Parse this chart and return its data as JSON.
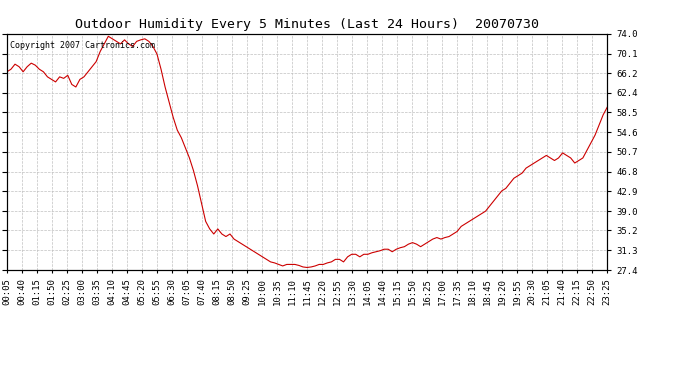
{
  "title": "Outdoor Humidity Every 5 Minutes (Last 24 Hours)  20070730",
  "copyright": "Copyright 2007 Cartronics.com",
  "background_color": "#ffffff",
  "line_color": "#cc0000",
  "grid_color": "#c0c0c0",
  "yticks": [
    27.4,
    31.3,
    35.2,
    39.0,
    42.9,
    46.8,
    50.7,
    54.6,
    58.5,
    62.4,
    66.2,
    70.1,
    74.0
  ],
  "ylim": [
    27.4,
    74.0
  ],
  "xtick_labels": [
    "00:05",
    "00:40",
    "01:15",
    "01:50",
    "02:25",
    "03:00",
    "03:35",
    "04:10",
    "04:45",
    "05:20",
    "05:55",
    "06:30",
    "07:05",
    "07:40",
    "08:15",
    "08:50",
    "09:25",
    "10:00",
    "10:35",
    "11:10",
    "11:45",
    "12:20",
    "12:55",
    "13:30",
    "14:05",
    "14:40",
    "15:15",
    "15:50",
    "16:25",
    "17:00",
    "17:35",
    "18:10",
    "18:45",
    "19:20",
    "19:55",
    "20:30",
    "21:05",
    "21:40",
    "22:15",
    "22:50",
    "23:25"
  ],
  "humidity_values": [
    66.5,
    67.0,
    68.0,
    67.5,
    66.5,
    67.5,
    68.2,
    67.8,
    67.0,
    66.5,
    65.5,
    65.0,
    64.5,
    65.5,
    65.2,
    65.8,
    64.0,
    63.5,
    65.0,
    65.5,
    66.5,
    67.5,
    68.5,
    70.5,
    72.0,
    73.5,
    73.0,
    72.5,
    72.0,
    72.8,
    72.0,
    71.5,
    72.5,
    72.8,
    73.0,
    72.5,
    71.5,
    70.0,
    67.0,
    63.5,
    60.5,
    57.5,
    55.0,
    53.5,
    51.5,
    49.5,
    47.0,
    44.0,
    40.5,
    37.0,
    35.5,
    34.5,
    35.5,
    34.5,
    34.0,
    34.5,
    33.5,
    33.0,
    32.5,
    32.0,
    31.5,
    31.0,
    30.5,
    30.0,
    29.5,
    29.0,
    28.8,
    28.5,
    28.2,
    28.5,
    28.5,
    28.5,
    28.3,
    28.0,
    27.9,
    28.0,
    28.2,
    28.5,
    28.5,
    28.8,
    29.0,
    29.5,
    29.5,
    29.0,
    30.0,
    30.5,
    30.5,
    30.0,
    30.5,
    30.5,
    30.8,
    31.0,
    31.2,
    31.5,
    31.5,
    31.0,
    31.5,
    31.8,
    32.0,
    32.5,
    32.8,
    32.5,
    32.0,
    32.5,
    33.0,
    33.5,
    33.8,
    33.5,
    33.8,
    34.0,
    34.5,
    35.0,
    36.0,
    36.5,
    37.0,
    37.5,
    38.0,
    38.5,
    39.0,
    40.0,
    41.0,
    42.0,
    43.0,
    43.5,
    44.5,
    45.5,
    46.0,
    46.5,
    47.5,
    48.0,
    48.5,
    49.0,
    49.5,
    50.0,
    49.5,
    49.0,
    49.5,
    50.5,
    50.0,
    49.5,
    48.5,
    49.0,
    49.5,
    51.0,
    52.5,
    54.0,
    56.0,
    58.0,
    59.5
  ],
  "title_fontsize": 9.5,
  "tick_fontsize": 6.5,
  "copyright_fontsize": 6
}
